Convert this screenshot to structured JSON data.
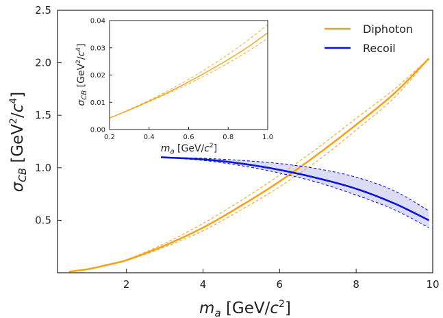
{
  "chart_data": [
    {
      "type": "line",
      "panel": "main",
      "xlabel": "m_a [GeV/c^2]",
      "ylabel": "σ_CB [GeV^2/c^4]",
      "xlim": [
        0.2,
        10
      ],
      "ylim": [
        0,
        2.5
      ],
      "xticks": [
        2,
        4,
        6,
        8,
        10
      ],
      "yticks": [
        0.5,
        1.0,
        1.5,
        2.0,
        2.5
      ],
      "xtick_labels": [
        "2",
        "4",
        "6",
        "8",
        "10"
      ],
      "ytick_labels": [
        "0.5",
        "1.0",
        "1.5",
        "2.0",
        "2.5"
      ],
      "legend": {
        "placement": "top-right",
        "entries": [
          "Diphoton",
          "Recoil"
        ]
      },
      "series": [
        {
          "name": "Diphoton",
          "color": "#f5a31a",
          "x": [
            0.5,
            1,
            1.5,
            2,
            3,
            4,
            5,
            6,
            7,
            8,
            9,
            9.9
          ],
          "values": [
            0.01,
            0.035,
            0.075,
            0.12,
            0.26,
            0.43,
            0.64,
            0.87,
            1.13,
            1.41,
            1.71,
            2.04
          ],
          "upper": [
            0.01,
            0.036,
            0.078,
            0.125,
            0.28,
            0.47,
            0.69,
            0.93,
            1.19,
            1.47,
            1.75,
            2.04
          ],
          "lower": [
            0.01,
            0.034,
            0.072,
            0.115,
            0.245,
            0.4,
            0.6,
            0.82,
            1.07,
            1.36,
            1.67,
            2.04
          ]
        },
        {
          "name": "Recoil",
          "color": "#0a14d6",
          "band_color": "#dcdcf5",
          "x": [
            2.9,
            4,
            5,
            6,
            7,
            8,
            9,
            9.9
          ],
          "values": [
            1.1,
            1.08,
            1.04,
            0.98,
            0.9,
            0.8,
            0.66,
            0.5
          ],
          "upper": [
            1.1,
            1.09,
            1.07,
            1.04,
            0.99,
            0.91,
            0.78,
            0.59
          ],
          "lower": [
            1.1,
            1.07,
            1.02,
            0.95,
            0.86,
            0.74,
            0.6,
            0.43
          ]
        }
      ]
    },
    {
      "type": "line",
      "panel": "inset",
      "xlabel": "m_a [GeV/c^2]",
      "ylabel": "σ_CB [GeV^2/c^4]",
      "xlim": [
        0.2,
        1.0
      ],
      "ylim": [
        0,
        0.04
      ],
      "xticks": [
        0.2,
        0.4,
        0.6,
        0.8,
        1.0
      ],
      "yticks": [
        0,
        0.01,
        0.02,
        0.03,
        0.04
      ],
      "xtick_labels": [
        "0.2",
        "0.4",
        "0.6",
        "0.8",
        "1.0"
      ],
      "ytick_labels": [
        "0.00",
        "0.01",
        "0.02",
        "0.03",
        "0.04"
      ],
      "series": [
        {
          "name": "Diphoton",
          "color": "#f5a31a",
          "x": [
            0.2,
            0.3,
            0.4,
            0.5,
            0.6,
            0.7,
            0.8,
            0.9,
            1.0
          ],
          "values": [
            0.0042,
            0.0072,
            0.0104,
            0.0138,
            0.0175,
            0.0215,
            0.0257,
            0.0303,
            0.0355
          ],
          "upper": [
            0.0042,
            0.0074,
            0.0107,
            0.0144,
            0.0184,
            0.0228,
            0.0276,
            0.0328,
            0.0385
          ],
          "lower": [
            0.0042,
            0.0071,
            0.0102,
            0.0134,
            0.0168,
            0.0205,
            0.0244,
            0.0287,
            0.0335
          ]
        }
      ]
    }
  ]
}
